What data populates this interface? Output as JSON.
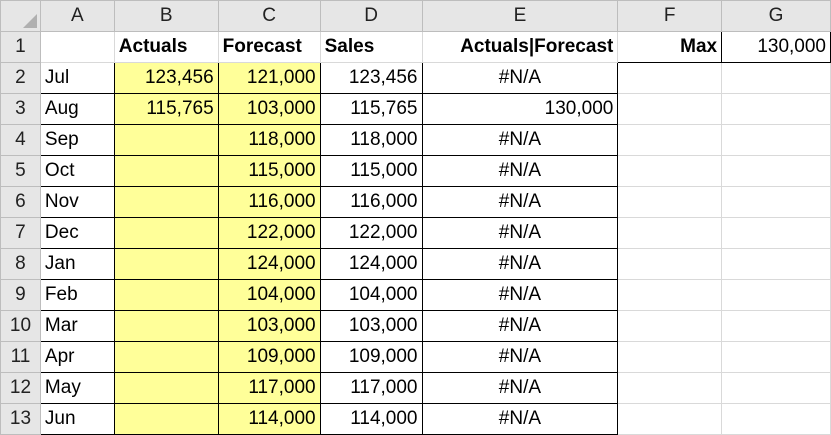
{
  "columns": [
    "A",
    "B",
    "C",
    "D",
    "E",
    "F",
    "G"
  ],
  "rows": [
    "1",
    "2",
    "3",
    "4",
    "5",
    "6",
    "7",
    "8",
    "9",
    "10",
    "11",
    "12",
    "13"
  ],
  "headers": {
    "actuals": "Actuals",
    "forecast": "Forecast",
    "sales": "Sales",
    "combined": "Actuals|Forecast",
    "max_label": "Max",
    "max_value": "130,000"
  },
  "data": [
    {
      "month": "Jul",
      "actuals": "123,456",
      "forecast": "121,000",
      "sales": "123,456",
      "combined": "#N/A"
    },
    {
      "month": "Aug",
      "actuals": "115,765",
      "forecast": "103,000",
      "sales": "115,765",
      "combined": "130,000"
    },
    {
      "month": "Sep",
      "actuals": "",
      "forecast": "118,000",
      "sales": "118,000",
      "combined": "#N/A"
    },
    {
      "month": "Oct",
      "actuals": "",
      "forecast": "115,000",
      "sales": "115,000",
      "combined": "#N/A"
    },
    {
      "month": "Nov",
      "actuals": "",
      "forecast": "116,000",
      "sales": "116,000",
      "combined": "#N/A"
    },
    {
      "month": "Dec",
      "actuals": "",
      "forecast": "122,000",
      "sales": "122,000",
      "combined": "#N/A"
    },
    {
      "month": "Jan",
      "actuals": "",
      "forecast": "124,000",
      "sales": "124,000",
      "combined": "#N/A"
    },
    {
      "month": "Feb",
      "actuals": "",
      "forecast": "104,000",
      "sales": "104,000",
      "combined": "#N/A"
    },
    {
      "month": "Mar",
      "actuals": "",
      "forecast": "103,000",
      "sales": "103,000",
      "combined": "#N/A"
    },
    {
      "month": "Apr",
      "actuals": "",
      "forecast": "109,000",
      "sales": "109,000",
      "combined": "#N/A"
    },
    {
      "month": "May",
      "actuals": "",
      "forecast": "117,000",
      "sales": "117,000",
      "combined": "#N/A"
    },
    {
      "month": "Jun",
      "actuals": "",
      "forecast": "114,000",
      "sales": "114,000",
      "combined": "#N/A"
    }
  ],
  "colors": {
    "highlight": "#ffff99",
    "header_bg": "#e6e6e6",
    "gridline": "#d9d9d9"
  }
}
